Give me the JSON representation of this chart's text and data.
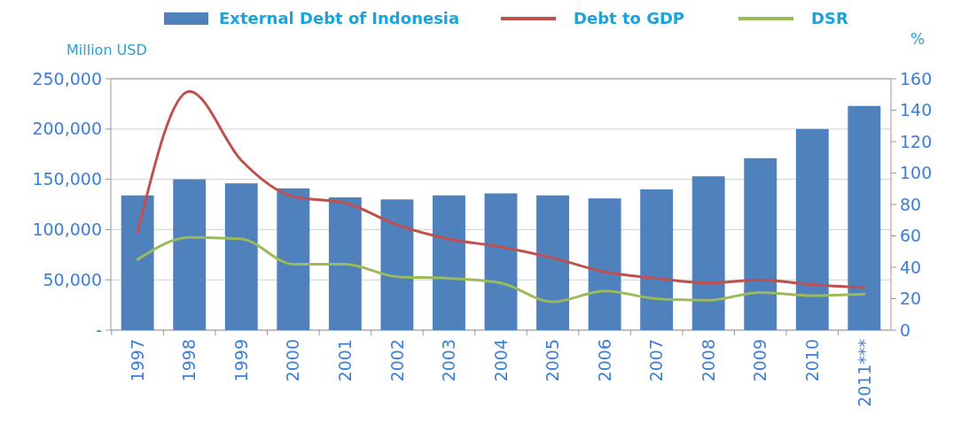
{
  "chart_data": {
    "type": "bar",
    "ylabel": "Million USD",
    "y2label": "%",
    "categories": [
      "1997",
      "1998",
      "1999",
      "2000",
      "2001",
      "2002",
      "2003",
      "2004",
      "2005",
      "2006",
      "2007",
      "2008",
      "2009",
      "2010",
      "2011***"
    ],
    "series": [
      {
        "name": "External Debt of Indonesia",
        "color": "#4f81bd",
        "values": [
          134000,
          150000,
          146000,
          141000,
          132000,
          130000,
          134000,
          136000,
          134000,
          131000,
          140000,
          153000,
          171000,
          200000,
          223000
        ]
      },
      {
        "name": "Debt to GDP",
        "type": "line",
        "axis": "y2",
        "color": "#c0504d",
        "values": [
          62,
          152,
          108,
          85,
          81,
          67,
          58,
          53,
          46,
          37,
          33,
          30,
          32,
          29,
          27
        ]
      },
      {
        "name": "DSR",
        "type": "line",
        "axis": "y2",
        "color": "#9bbb59",
        "values": [
          45,
          59,
          58,
          42,
          42,
          34,
          33,
          30,
          18,
          25,
          20,
          19,
          24,
          22,
          23
        ]
      }
    ],
    "ylim": [
      0,
      250000
    ],
    "yticks": [
      {
        "value": 0,
        "label": "-"
      },
      {
        "value": 50000,
        "label": "50,000"
      },
      {
        "value": 100000,
        "label": "100,000"
      },
      {
        "value": 150000,
        "label": "150,000"
      },
      {
        "value": 200000,
        "label": "200,000"
      },
      {
        "value": 250000,
        "label": "250,000"
      }
    ],
    "y2lim": [
      0,
      160
    ],
    "y2ticks": [
      0,
      20,
      40,
      60,
      80,
      100,
      120,
      140,
      160
    ],
    "grid": "y",
    "legend": "top"
  }
}
